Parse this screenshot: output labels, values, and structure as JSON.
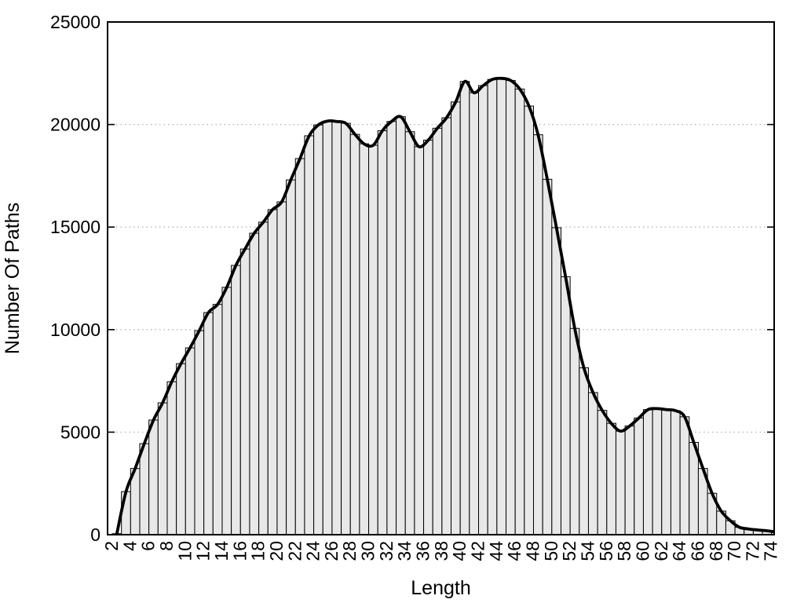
{
  "chart_data": {
    "type": "bar",
    "subtype": "histogram-with-smooth-curve",
    "title": "",
    "xlabel": "Length",
    "ylabel": "Number Of Paths",
    "x": [
      2,
      3,
      4,
      5,
      6,
      7,
      8,
      9,
      10,
      11,
      12,
      13,
      14,
      15,
      16,
      17,
      18,
      19,
      20,
      21,
      22,
      23,
      24,
      25,
      26,
      27,
      28,
      29,
      30,
      31,
      32,
      33,
      34,
      35,
      36,
      37,
      38,
      39,
      40,
      41,
      42,
      43,
      44,
      45,
      46,
      47,
      48,
      49,
      50,
      51,
      52,
      53,
      54,
      55,
      56,
      57,
      58,
      59,
      60,
      61,
      62,
      63,
      64,
      65,
      66,
      67,
      68,
      69,
      70,
      71,
      72,
      73,
      74
    ],
    "values": [
      50,
      2100,
      3230,
      4440,
      5590,
      6430,
      7460,
      8340,
      9110,
      9950,
      10830,
      11230,
      12060,
      13130,
      13930,
      14700,
      15240,
      15850,
      16230,
      17300,
      18340,
      19450,
      19980,
      20170,
      20150,
      20060,
      19520,
      19060,
      18990,
      19700,
      20150,
      20380,
      19650,
      18920,
      19240,
      19820,
      20330,
      21100,
      22100,
      21550,
      21900,
      22200,
      22250,
      22150,
      21730,
      20900,
      19500,
      17330,
      14970,
      12580,
      10060,
      8140,
      6930,
      6060,
      5430,
      5050,
      5300,
      5690,
      6100,
      6150,
      6100,
      6050,
      5750,
      4500,
      3230,
      2020,
      1150,
      680,
      360,
      280,
      230,
      190,
      130
    ],
    "series": [
      {
        "name": "path-count-boxes",
        "style": "box"
      },
      {
        "name": "smooth-spline-overlay",
        "style": "line"
      }
    ],
    "xticks": [
      2,
      4,
      6,
      8,
      10,
      12,
      14,
      16,
      18,
      20,
      22,
      24,
      26,
      28,
      30,
      32,
      34,
      36,
      38,
      40,
      42,
      44,
      46,
      48,
      50,
      52,
      54,
      56,
      58,
      60,
      62,
      64,
      66,
      68,
      70,
      72,
      74
    ],
    "yticks": [
      0,
      5000,
      10000,
      15000,
      20000,
      25000
    ],
    "xlim": [
      1.5,
      74.8
    ],
    "ylim": [
      0,
      25000
    ],
    "bar_width": 1,
    "grid": "horizontal dotted lines at y ticks",
    "legend": "none",
    "xtick_label_rotation_deg": 90,
    "colors": {
      "background": "#ffffff",
      "bar_fill": "#e8e8e8",
      "bar_stroke": "#000000",
      "curve": "#000000",
      "grid": "#b5b5b5",
      "border": "#000000",
      "text": "#000000"
    }
  }
}
